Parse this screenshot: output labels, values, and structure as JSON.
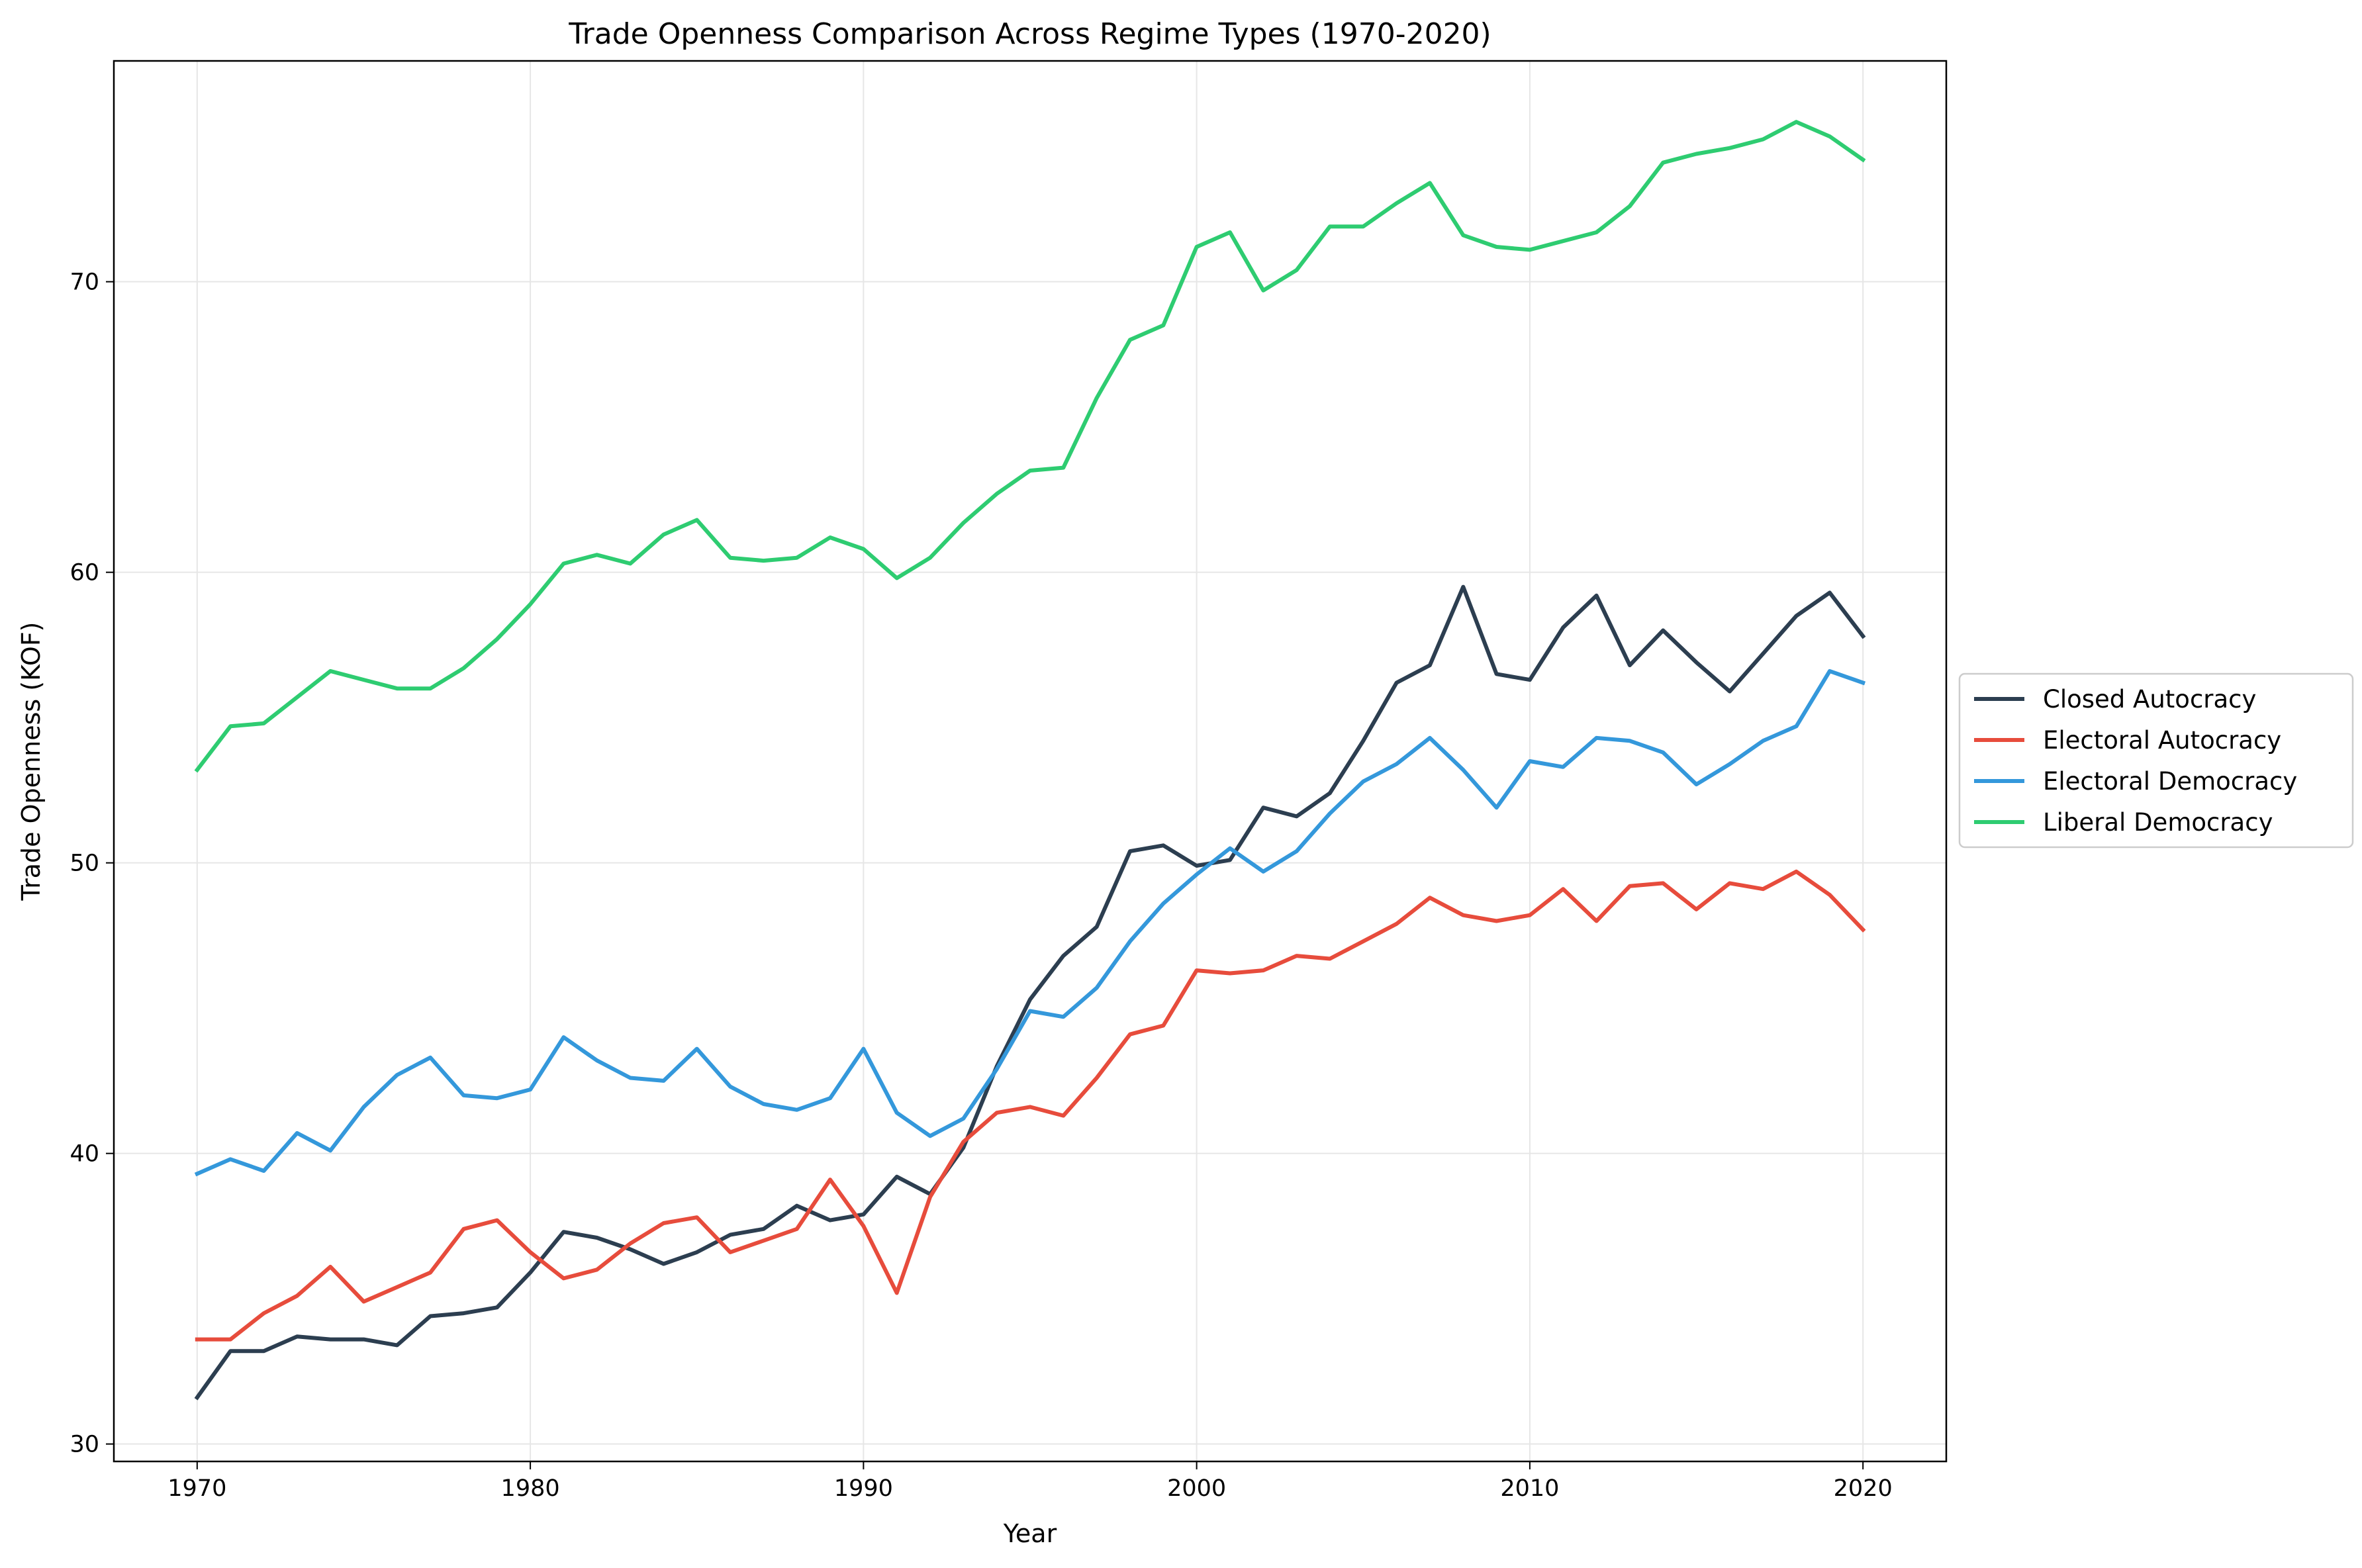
{
  "chart_data": {
    "type": "line",
    "title": "Trade Openness Comparison Across Regime Types (1970-2020)",
    "xlabel": "Year",
    "ylabel": "Trade Openness (KOF)",
    "xlim": [
      1967.5,
      2022.5
    ],
    "ylim": [
      29.4,
      77.6
    ],
    "xticks": [
      1970,
      1980,
      1990,
      2000,
      2010,
      2020
    ],
    "yticks": [
      30,
      40,
      50,
      60,
      70
    ],
    "grid": true,
    "legend_position": "center-right-outside",
    "x": [
      1970,
      1971,
      1972,
      1973,
      1974,
      1975,
      1976,
      1977,
      1978,
      1979,
      1980,
      1981,
      1982,
      1983,
      1984,
      1985,
      1986,
      1987,
      1988,
      1989,
      1990,
      1991,
      1992,
      1993,
      1994,
      1995,
      1996,
      1997,
      1998,
      1999,
      2000,
      2001,
      2002,
      2003,
      2004,
      2005,
      2006,
      2007,
      2008,
      2009,
      2010,
      2011,
      2012,
      2013,
      2014,
      2015,
      2016,
      2017,
      2018,
      2019,
      2020
    ],
    "series": [
      {
        "name": "Closed Autocracy",
        "color": "#2c3e50",
        "values": [
          31.6,
          33.2,
          33.2,
          33.7,
          33.6,
          33.6,
          33.4,
          34.4,
          34.5,
          34.7,
          35.9,
          37.3,
          37.1,
          36.7,
          36.2,
          36.6,
          37.2,
          37.4,
          38.2,
          37.7,
          37.9,
          39.2,
          38.6,
          40.2,
          43.0,
          45.3,
          46.8,
          47.8,
          50.4,
          50.6,
          49.9,
          50.1,
          51.9,
          51.6,
          52.4,
          54.2,
          56.2,
          56.8,
          59.5,
          56.5,
          56.3,
          58.1,
          59.2,
          56.8,
          58.0,
          56.9,
          55.9,
          57.2,
          58.5,
          59.3,
          57.8
        ]
      },
      {
        "name": "Electoral Autocracy",
        "color": "#e74c3c",
        "values": [
          33.6,
          33.6,
          34.5,
          35.1,
          36.1,
          34.9,
          35.4,
          35.9,
          37.4,
          37.7,
          36.6,
          35.7,
          36.0,
          36.9,
          37.6,
          37.8,
          36.6,
          37.0,
          37.4,
          39.1,
          37.5,
          35.2,
          38.5,
          40.4,
          41.4,
          41.6,
          41.3,
          42.6,
          44.1,
          44.4,
          46.3,
          46.2,
          46.3,
          46.8,
          46.7,
          47.3,
          47.9,
          48.8,
          48.2,
          48.0,
          48.2,
          49.1,
          48.0,
          49.2,
          49.3,
          48.4,
          49.3,
          49.1,
          49.7,
          48.9,
          47.7
        ]
      },
      {
        "name": "Electoral Democracy",
        "color": "#3498db",
        "values": [
          39.3,
          39.8,
          39.4,
          40.7,
          40.1,
          41.6,
          42.7,
          43.3,
          42.0,
          41.9,
          42.2,
          44.0,
          43.2,
          42.6,
          42.5,
          43.6,
          42.3,
          41.7,
          41.5,
          41.9,
          43.6,
          41.4,
          40.6,
          41.2,
          42.9,
          44.9,
          44.7,
          45.7,
          47.3,
          48.6,
          49.6,
          50.5,
          49.7,
          50.4,
          51.7,
          52.8,
          53.4,
          54.3,
          53.2,
          51.9,
          53.5,
          53.3,
          54.3,
          54.2,
          53.8,
          52.7,
          53.4,
          54.2,
          54.7,
          56.6,
          56.2
        ]
      },
      {
        "name": "Liberal Democracy",
        "color": "#2ecc71",
        "values": [
          53.2,
          54.7,
          54.8,
          55.7,
          56.6,
          56.3,
          56.0,
          56.0,
          56.7,
          57.7,
          58.9,
          60.3,
          60.6,
          60.3,
          61.3,
          61.8,
          60.5,
          60.4,
          60.5,
          61.2,
          60.8,
          59.8,
          60.5,
          61.7,
          62.7,
          63.5,
          63.6,
          66.0,
          68.0,
          68.5,
          71.2,
          71.7,
          69.7,
          70.4,
          71.9,
          71.9,
          72.7,
          73.4,
          71.6,
          71.2,
          71.1,
          71.4,
          71.7,
          72.6,
          74.1,
          74.4,
          74.6,
          74.9,
          75.5,
          75.0,
          74.2
        ]
      }
    ]
  }
}
